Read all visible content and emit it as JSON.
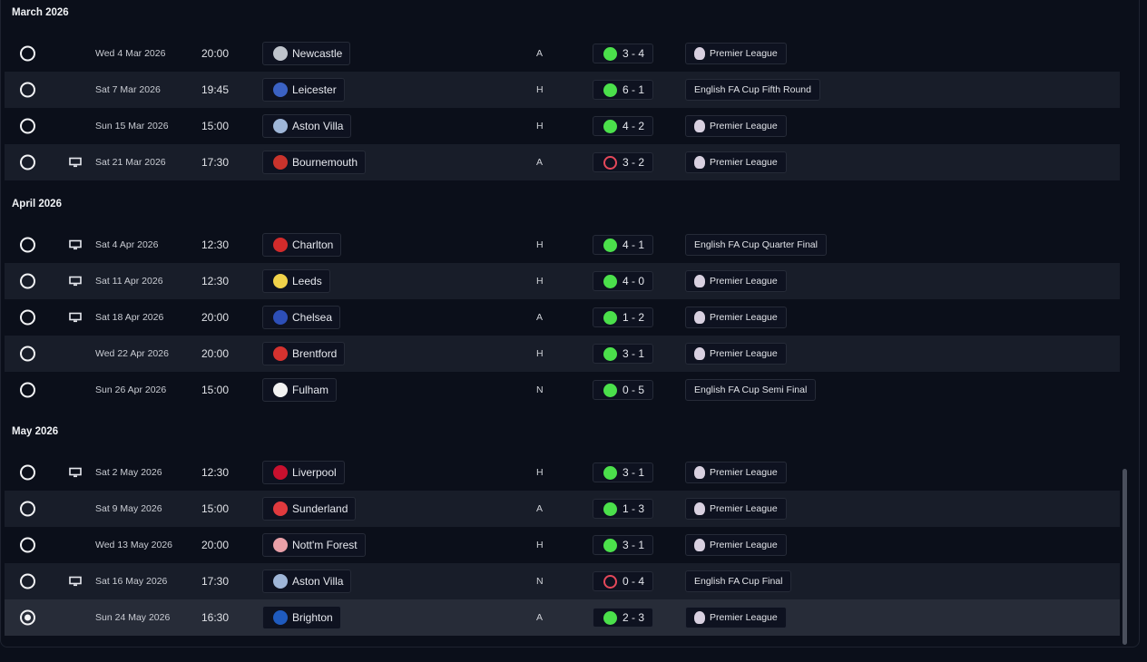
{
  "sections": [
    {
      "title": "March 2026",
      "rows": [
        {
          "date": "Wed 4 Mar 2026",
          "time": "20:00",
          "team": "Newcastle",
          "badge": "#bfc4cc",
          "venue": "A",
          "score": "3 - 4",
          "outcome": "win",
          "competition": "Premier League",
          "pl": true,
          "tv": false
        },
        {
          "date": "Sat 7 Mar 2026",
          "time": "19:45",
          "team": "Leicester",
          "badge": "#3b62c4",
          "venue": "H",
          "score": "6 - 1",
          "outcome": "win",
          "competition": "English FA Cup Fifth Round",
          "pl": false,
          "tv": false
        },
        {
          "date": "Sun 15 Mar 2026",
          "time": "15:00",
          "team": "Aston Villa",
          "badge": "#9fb6d8",
          "venue": "H",
          "score": "4 - 2",
          "outcome": "win",
          "competition": "Premier League",
          "pl": true,
          "tv": false
        },
        {
          "date": "Sat 21 Mar 2026",
          "time": "17:30",
          "team": "Bournemouth",
          "badge": "#c9332c",
          "venue": "A",
          "score": "3 - 2",
          "outcome": "loss",
          "competition": "Premier League",
          "pl": true,
          "tv": true
        }
      ]
    },
    {
      "title": "April 2026",
      "rows": [
        {
          "date": "Sat 4 Apr 2026",
          "time": "12:30",
          "team": "Charlton",
          "badge": "#d22b2b",
          "venue": "H",
          "score": "4 - 1",
          "outcome": "win",
          "competition": "English FA Cup Quarter Final",
          "pl": false,
          "tv": true
        },
        {
          "date": "Sat 11 Apr 2026",
          "time": "12:30",
          "team": "Leeds",
          "badge": "#f0d24a",
          "venue": "H",
          "score": "4 - 0",
          "outcome": "win",
          "competition": "Premier League",
          "pl": true,
          "tv": true
        },
        {
          "date": "Sat 18 Apr 2026",
          "time": "20:00",
          "team": "Chelsea",
          "badge": "#2d4fb8",
          "venue": "A",
          "score": "1 - 2",
          "outcome": "win",
          "competition": "Premier League",
          "pl": true,
          "tv": true
        },
        {
          "date": "Wed 22 Apr 2026",
          "time": "20:00",
          "team": "Brentford",
          "badge": "#d5322f",
          "venue": "H",
          "score": "3 - 1",
          "outcome": "win",
          "competition": "Premier League",
          "pl": true,
          "tv": false
        },
        {
          "date": "Sun 26 Apr 2026",
          "time": "15:00",
          "team": "Fulham",
          "badge": "#f2f2f2",
          "venue": "N",
          "score": "0 - 5",
          "outcome": "win",
          "competition": "English FA Cup Semi Final",
          "pl": false,
          "tv": false
        }
      ]
    },
    {
      "title": "May 2026",
      "rows": [
        {
          "date": "Sat 2 May 2026",
          "time": "12:30",
          "team": "Liverpool",
          "badge": "#c8102e",
          "venue": "H",
          "score": "3 - 1",
          "outcome": "win",
          "competition": "Premier League",
          "pl": true,
          "tv": true
        },
        {
          "date": "Sat 9 May 2026",
          "time": "15:00",
          "team": "Sunderland",
          "badge": "#e03a3e",
          "venue": "A",
          "score": "1 - 3",
          "outcome": "win",
          "competition": "Premier League",
          "pl": true,
          "tv": false
        },
        {
          "date": "Wed 13 May 2026",
          "time": "20:00",
          "team": "Nott'm Forest",
          "badge": "#e9a0a8",
          "venue": "H",
          "score": "3 - 1",
          "outcome": "win",
          "competition": "Premier League",
          "pl": true,
          "tv": false
        },
        {
          "date": "Sat 16 May 2026",
          "time": "17:30",
          "team": "Aston Villa",
          "badge": "#9fb6d8",
          "venue": "N",
          "score": "0 - 4",
          "outcome": "loss",
          "competition": "English FA Cup Final",
          "pl": false,
          "tv": true
        },
        {
          "date": "Sun 24 May 2026",
          "time": "16:30",
          "team": "Brighton",
          "badge": "#1f5bbf",
          "venue": "A",
          "score": "2 - 3",
          "outcome": "win",
          "competition": "Premier League",
          "pl": true,
          "tv": false,
          "selected": true
        }
      ]
    }
  ]
}
